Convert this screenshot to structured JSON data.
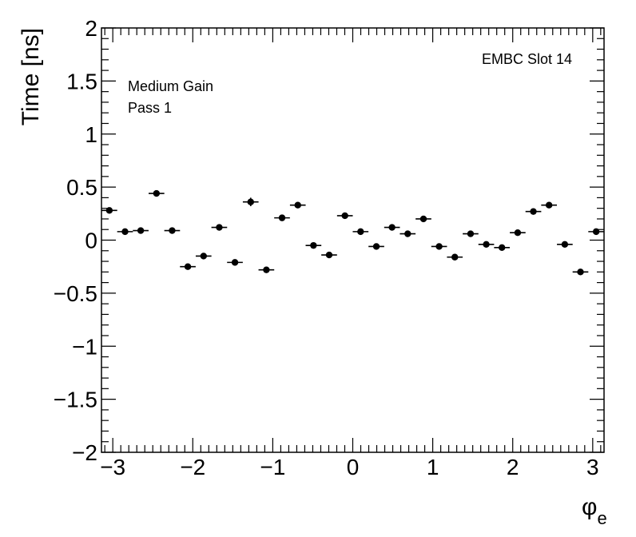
{
  "chart_data": {
    "type": "scatter",
    "xlabel": "φ",
    "xlabel_subscript": "e",
    "ylabel": "Time [ns]",
    "xlim": [
      -3.1416,
      3.1416
    ],
    "ylim": [
      -2,
      2
    ],
    "x_ticks": [
      -3,
      -2,
      -1,
      0,
      1,
      2,
      3
    ],
    "x_tick_labels": [
      "−3",
      "−2",
      "−1",
      "0",
      "1",
      "2",
      "3"
    ],
    "y_ticks": [
      -2,
      -1.5,
      -1,
      -0.5,
      0,
      0.5,
      1,
      1.5,
      2
    ],
    "y_tick_labels": [
      "−2",
      "−1.5",
      "−1",
      "−0.5",
      "0",
      "0.5",
      "1",
      "1.5",
      "2"
    ],
    "grid": false,
    "marker_color": "#000000",
    "annotations": {
      "top_right": "EMBC Slot 14",
      "line1": "Medium Gain",
      "line2": "Pass 1"
    },
    "bin_half_width": 0.0982,
    "points": [
      {
        "x": -3.043,
        "y": 0.28,
        "yerr": 0.02
      },
      {
        "x": -2.847,
        "y": 0.08,
        "yerr": 0.015
      },
      {
        "x": -2.651,
        "y": 0.09,
        "yerr": 0.015
      },
      {
        "x": -2.454,
        "y": 0.44,
        "yerr": 0.02
      },
      {
        "x": -2.258,
        "y": 0.09,
        "yerr": 0.015
      },
      {
        "x": -2.062,
        "y": -0.25,
        "yerr": 0.015
      },
      {
        "x": -1.865,
        "y": -0.15,
        "yerr": 0.015
      },
      {
        "x": -1.669,
        "y": 0.12,
        "yerr": 0.015
      },
      {
        "x": -1.473,
        "y": -0.21,
        "yerr": 0.015
      },
      {
        "x": -1.276,
        "y": 0.36,
        "yerr": 0.04
      },
      {
        "x": -1.08,
        "y": -0.28,
        "yerr": 0.015
      },
      {
        "x": -0.884,
        "y": 0.21,
        "yerr": 0.02
      },
      {
        "x": -0.687,
        "y": 0.33,
        "yerr": 0.02
      },
      {
        "x": -0.491,
        "y": -0.05,
        "yerr": 0.015
      },
      {
        "x": -0.295,
        "y": -0.14,
        "yerr": 0.015
      },
      {
        "x": -0.098,
        "y": 0.23,
        "yerr": 0.015
      },
      {
        "x": 0.098,
        "y": 0.08,
        "yerr": 0.015
      },
      {
        "x": 0.295,
        "y": -0.06,
        "yerr": 0.015
      },
      {
        "x": 0.491,
        "y": 0.12,
        "yerr": 0.015
      },
      {
        "x": 0.687,
        "y": 0.06,
        "yerr": 0.015
      },
      {
        "x": 0.884,
        "y": 0.2,
        "yerr": 0.015
      },
      {
        "x": 1.08,
        "y": -0.06,
        "yerr": 0.015
      },
      {
        "x": 1.276,
        "y": -0.16,
        "yerr": 0.015
      },
      {
        "x": 1.473,
        "y": 0.06,
        "yerr": 0.015
      },
      {
        "x": 1.669,
        "y": -0.04,
        "yerr": 0.015
      },
      {
        "x": 1.865,
        "y": -0.07,
        "yerr": 0.015
      },
      {
        "x": 2.062,
        "y": 0.07,
        "yerr": 0.015
      },
      {
        "x": 2.258,
        "y": 0.27,
        "yerr": 0.015
      },
      {
        "x": 2.454,
        "y": 0.33,
        "yerr": 0.015
      },
      {
        "x": 2.651,
        "y": -0.04,
        "yerr": 0.015
      },
      {
        "x": 2.847,
        "y": -0.3,
        "yerr": 0.015
      },
      {
        "x": 3.043,
        "y": 0.08,
        "yerr": 0.015
      }
    ]
  }
}
